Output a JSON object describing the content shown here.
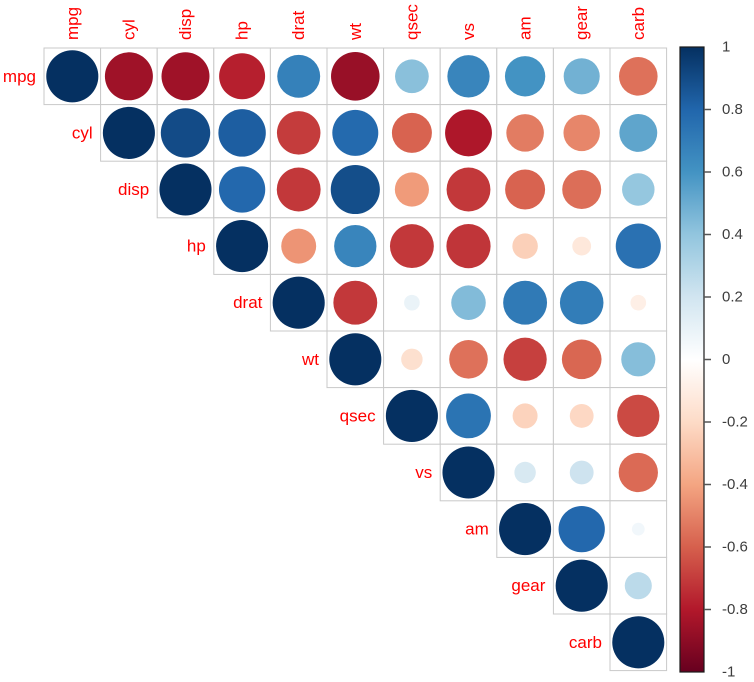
{
  "chart_data": {
    "type": "heatmap",
    "subtype": "correlation-matrix-circles-upper-triangle",
    "title": "",
    "variables": [
      "mpg",
      "cyl",
      "disp",
      "hp",
      "drat",
      "wt",
      "qsec",
      "vs",
      "am",
      "gear",
      "carb"
    ],
    "matrix": [
      [
        1.0,
        -0.85,
        -0.85,
        -0.78,
        0.68,
        -0.87,
        0.42,
        0.66,
        0.6,
        0.48,
        -0.55
      ],
      [
        -0.85,
        1.0,
        0.9,
        0.83,
        -0.7,
        0.78,
        -0.59,
        -0.81,
        -0.52,
        -0.49,
        0.53
      ],
      [
        -0.85,
        0.9,
        1.0,
        0.79,
        -0.71,
        0.89,
        -0.43,
        -0.71,
        -0.59,
        -0.56,
        0.39
      ],
      [
        -0.78,
        0.83,
        0.79,
        1.0,
        -0.45,
        0.66,
        -0.71,
        -0.72,
        -0.24,
        -0.13,
        0.75
      ],
      [
        0.68,
        -0.7,
        -0.71,
        -0.45,
        1.0,
        -0.71,
        0.09,
        0.44,
        0.71,
        0.7,
        -0.09
      ],
      [
        -0.87,
        0.78,
        0.89,
        0.66,
        -0.71,
        1.0,
        -0.17,
        -0.55,
        -0.69,
        -0.58,
        0.43
      ],
      [
        0.42,
        -0.59,
        -0.43,
        -0.71,
        0.09,
        -0.17,
        1.0,
        0.74,
        -0.23,
        -0.21,
        -0.66
      ],
      [
        0.66,
        -0.81,
        -0.71,
        -0.72,
        0.44,
        -0.55,
        0.74,
        1.0,
        0.17,
        0.21,
        -0.57
      ],
      [
        0.6,
        -0.52,
        -0.59,
        -0.24,
        0.71,
        -0.69,
        -0.23,
        0.17,
        1.0,
        0.79,
        0.06
      ],
      [
        0.48,
        -0.49,
        -0.56,
        -0.13,
        0.7,
        -0.58,
        -0.21,
        0.21,
        0.79,
        1.0,
        0.27
      ],
      [
        -0.55,
        0.53,
        0.39,
        0.75,
        -0.09,
        0.43,
        -0.66,
        -0.57,
        0.06,
        0.27,
        1.0
      ]
    ],
    "value_range": [
      -1,
      1
    ],
    "palette_neg_to_pos": [
      "#67001F",
      "#B2182B",
      "#D6604D",
      "#F4A582",
      "#FDDBC7",
      "#FFFFFF",
      "#D1E5F0",
      "#92C5DE",
      "#4393C3",
      "#2166AC",
      "#053061"
    ],
    "variable_label_color": "#ff0000",
    "grid_line_color": "#c9c9c9",
    "cell_background": "#ffffff",
    "legend_position": "right",
    "colorbar": {
      "min": -1,
      "max": 1,
      "tick_labels": [
        "1",
        "0.8",
        "0.6",
        "0.4",
        "0.2",
        "0",
        "-0.2",
        "-0.4",
        "-0.6",
        "-0.8",
        "-1"
      ],
      "tick_values": [
        1,
        0.8,
        0.6,
        0.4,
        0.2,
        0,
        -0.2,
        -0.4,
        -0.6,
        -0.8,
        -1
      ],
      "border_color": "#1a1a1a",
      "tick_color": "#555555",
      "tick_label_color": "#3d3d3d"
    }
  }
}
